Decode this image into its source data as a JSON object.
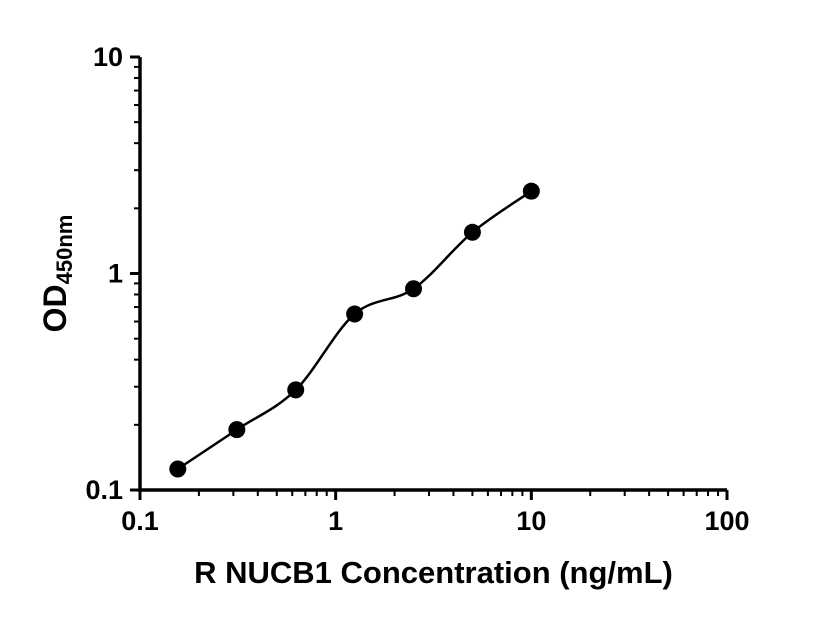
{
  "chart": {
    "x_tick_labels": [
      "0.1",
      "1",
      "10",
      "100"
    ],
    "y_tick_labels": [
      "0.1",
      "1",
      "10"
    ],
    "x_axis_title": "R NUCB1 Concentration (ng/mL)",
    "y_axis_title_main": "OD",
    "y_axis_title_sub": "450nm",
    "axis_color": "#000000",
    "marker_color": "#000000",
    "line_color": "#000000",
    "background_color": "#ffffff"
  },
  "chart_data": {
    "type": "scatter",
    "title": "",
    "xlabel": "R NUCB1 Concentration (ng/mL)",
    "ylabel": "OD450nm",
    "x_scale": "log",
    "y_scale": "log",
    "xlim": [
      0.1,
      100
    ],
    "ylim": [
      0.1,
      10
    ],
    "x": [
      0.156,
      0.3125,
      0.625,
      1.25,
      2.5,
      5,
      10
    ],
    "y": [
      0.125,
      0.19,
      0.29,
      0.65,
      0.85,
      1.55,
      2.4
    ],
    "x_major_ticks": [
      0.1,
      1,
      10,
      100
    ],
    "y_major_ticks": [
      0.1,
      1,
      10
    ],
    "trendline": "smooth-fit",
    "legend": "none",
    "grid": "off"
  }
}
